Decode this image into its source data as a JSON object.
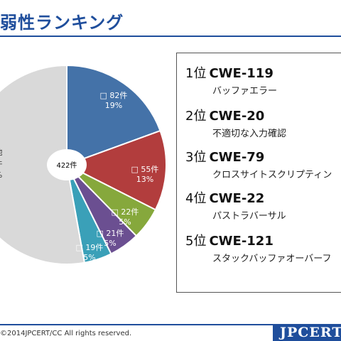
{
  "header": {
    "title": "弱性ランキング"
  },
  "chart_data": {
    "type": "pie",
    "total_label": "422件",
    "slices": [
      {
        "count": "82件",
        "percent": "19%",
        "value": 82,
        "color": "#4472a8"
      },
      {
        "count": "55件",
        "percent": "13%",
        "value": 55,
        "color": "#b23d3d"
      },
      {
        "count": "22件",
        "percent": "5%",
        "value": 22,
        "color": "#86a83c"
      },
      {
        "count": "21件",
        "percent": "5%",
        "value": 21,
        "color": "#6b4f91"
      },
      {
        "count": "19件",
        "percent": "5%",
        "value": 19,
        "color": "#3aa0b8"
      },
      {
        "count": "件",
        "percent": "%",
        "name": "他",
        "value": 223,
        "color": "#d9d9d9"
      }
    ]
  },
  "ranking": [
    {
      "rank": "1位",
      "code": "CWE-119",
      "name": "バッファエラー"
    },
    {
      "rank": "2位",
      "code": "CWE-20",
      "name": "不適切な入力確認"
    },
    {
      "rank": "3位",
      "code": "CWE-79",
      "name": "クロスサイトスクリプティン"
    },
    {
      "rank": "4位",
      "code": "CWE-22",
      "name": "パストラバーサル"
    },
    {
      "rank": "5位",
      "code": "CWE-121",
      "name": "スタックバッファオーバーフ"
    }
  ],
  "footer": {
    "copyright": "©2014JPCERT/CC All rights reserved.",
    "logo": "JPCERT"
  }
}
